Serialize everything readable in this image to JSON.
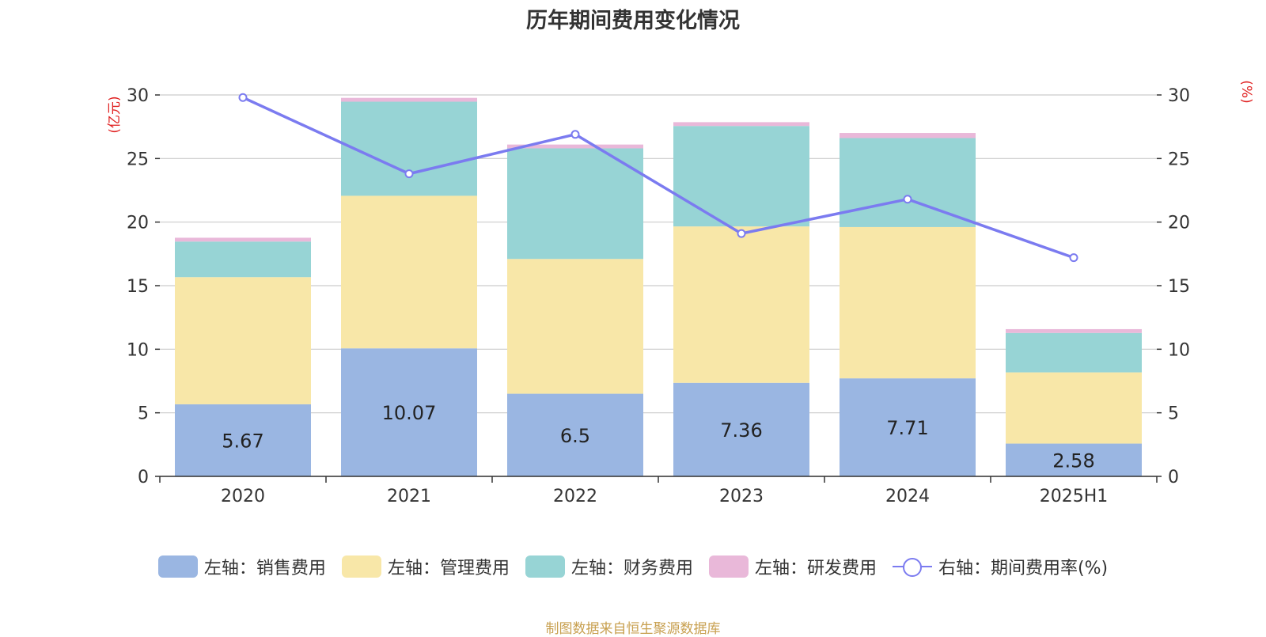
{
  "chart_data": {
    "type": "bar",
    "title": "历年期间费用变化情况",
    "categories": [
      "2020",
      "2021",
      "2022",
      "2023",
      "2024",
      "2025H1"
    ],
    "stacked": true,
    "series": [
      {
        "name": "左轴：销售费用",
        "axis": "left",
        "color": "#9ab6e2",
        "values": [
          5.67,
          10.07,
          6.5,
          7.36,
          7.71,
          2.58
        ],
        "show_labels": true
      },
      {
        "name": "左轴：管理费用",
        "axis": "left",
        "color": "#f8e7a8",
        "values": [
          10.0,
          12.0,
          10.6,
          12.3,
          11.9,
          5.6
        ]
      },
      {
        "name": "左轴：财务费用",
        "axis": "left",
        "color": "#97d4d5",
        "values": [
          2.8,
          7.4,
          8.7,
          7.9,
          7.0,
          3.1
        ]
      },
      {
        "name": "左轴：研发费用",
        "axis": "left",
        "color": "#e9b8d9",
        "values": [
          0.3,
          0.3,
          0.3,
          0.3,
          0.4,
          0.3
        ]
      },
      {
        "name": "右轴：期间费用率(%)",
        "axis": "right",
        "type": "line",
        "color": "#7b7bf0",
        "values": [
          29.8,
          23.8,
          26.9,
          19.1,
          21.8,
          17.2
        ]
      }
    ],
    "y_left": {
      "label": "(亿元)",
      "ylim": [
        0,
        30
      ],
      "ticks": [
        "0",
        "5",
        "10",
        "15",
        "20",
        "25",
        "30"
      ]
    },
    "y_right": {
      "label": "(%)",
      "ylim": [
        0,
        30
      ],
      "ticks": [
        "0",
        "5",
        "10",
        "15",
        "20",
        "25",
        "30"
      ]
    },
    "grid": true,
    "legend_position": "bottom",
    "source": "制图数据来自恒生聚源数据库"
  }
}
